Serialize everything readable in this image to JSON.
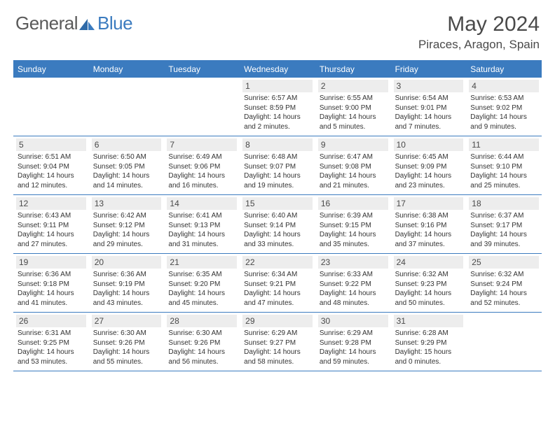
{
  "logo": {
    "part1": "General",
    "part2": "Blue"
  },
  "title": "May 2024",
  "location": "Piraces, Aragon, Spain",
  "colors": {
    "brand_blue": "#3b7bbf",
    "logo_gray": "#5a5a5a",
    "text": "#4a4a4a",
    "daynum_bg": "#ededed",
    "info_text": "#333333"
  },
  "weekdays": [
    "Sunday",
    "Monday",
    "Tuesday",
    "Wednesday",
    "Thursday",
    "Friday",
    "Saturday"
  ],
  "first_weekday_index": 3,
  "days": [
    {
      "n": 1,
      "sunrise": "6:57 AM",
      "sunset": "8:59 PM",
      "dl": "14 hours and 2 minutes."
    },
    {
      "n": 2,
      "sunrise": "6:55 AM",
      "sunset": "9:00 PM",
      "dl": "14 hours and 5 minutes."
    },
    {
      "n": 3,
      "sunrise": "6:54 AM",
      "sunset": "9:01 PM",
      "dl": "14 hours and 7 minutes."
    },
    {
      "n": 4,
      "sunrise": "6:53 AM",
      "sunset": "9:02 PM",
      "dl": "14 hours and 9 minutes."
    },
    {
      "n": 5,
      "sunrise": "6:51 AM",
      "sunset": "9:04 PM",
      "dl": "14 hours and 12 minutes."
    },
    {
      "n": 6,
      "sunrise": "6:50 AM",
      "sunset": "9:05 PM",
      "dl": "14 hours and 14 minutes."
    },
    {
      "n": 7,
      "sunrise": "6:49 AM",
      "sunset": "9:06 PM",
      "dl": "14 hours and 16 minutes."
    },
    {
      "n": 8,
      "sunrise": "6:48 AM",
      "sunset": "9:07 PM",
      "dl": "14 hours and 19 minutes."
    },
    {
      "n": 9,
      "sunrise": "6:47 AM",
      "sunset": "9:08 PM",
      "dl": "14 hours and 21 minutes."
    },
    {
      "n": 10,
      "sunrise": "6:45 AM",
      "sunset": "9:09 PM",
      "dl": "14 hours and 23 minutes."
    },
    {
      "n": 11,
      "sunrise": "6:44 AM",
      "sunset": "9:10 PM",
      "dl": "14 hours and 25 minutes."
    },
    {
      "n": 12,
      "sunrise": "6:43 AM",
      "sunset": "9:11 PM",
      "dl": "14 hours and 27 minutes."
    },
    {
      "n": 13,
      "sunrise": "6:42 AM",
      "sunset": "9:12 PM",
      "dl": "14 hours and 29 minutes."
    },
    {
      "n": 14,
      "sunrise": "6:41 AM",
      "sunset": "9:13 PM",
      "dl": "14 hours and 31 minutes."
    },
    {
      "n": 15,
      "sunrise": "6:40 AM",
      "sunset": "9:14 PM",
      "dl": "14 hours and 33 minutes."
    },
    {
      "n": 16,
      "sunrise": "6:39 AM",
      "sunset": "9:15 PM",
      "dl": "14 hours and 35 minutes."
    },
    {
      "n": 17,
      "sunrise": "6:38 AM",
      "sunset": "9:16 PM",
      "dl": "14 hours and 37 minutes."
    },
    {
      "n": 18,
      "sunrise": "6:37 AM",
      "sunset": "9:17 PM",
      "dl": "14 hours and 39 minutes."
    },
    {
      "n": 19,
      "sunrise": "6:36 AM",
      "sunset": "9:18 PM",
      "dl": "14 hours and 41 minutes."
    },
    {
      "n": 20,
      "sunrise": "6:36 AM",
      "sunset": "9:19 PM",
      "dl": "14 hours and 43 minutes."
    },
    {
      "n": 21,
      "sunrise": "6:35 AM",
      "sunset": "9:20 PM",
      "dl": "14 hours and 45 minutes."
    },
    {
      "n": 22,
      "sunrise": "6:34 AM",
      "sunset": "9:21 PM",
      "dl": "14 hours and 47 minutes."
    },
    {
      "n": 23,
      "sunrise": "6:33 AM",
      "sunset": "9:22 PM",
      "dl": "14 hours and 48 minutes."
    },
    {
      "n": 24,
      "sunrise": "6:32 AM",
      "sunset": "9:23 PM",
      "dl": "14 hours and 50 minutes."
    },
    {
      "n": 25,
      "sunrise": "6:32 AM",
      "sunset": "9:24 PM",
      "dl": "14 hours and 52 minutes."
    },
    {
      "n": 26,
      "sunrise": "6:31 AM",
      "sunset": "9:25 PM",
      "dl": "14 hours and 53 minutes."
    },
    {
      "n": 27,
      "sunrise": "6:30 AM",
      "sunset": "9:26 PM",
      "dl": "14 hours and 55 minutes."
    },
    {
      "n": 28,
      "sunrise": "6:30 AM",
      "sunset": "9:26 PM",
      "dl": "14 hours and 56 minutes."
    },
    {
      "n": 29,
      "sunrise": "6:29 AM",
      "sunset": "9:27 PM",
      "dl": "14 hours and 58 minutes."
    },
    {
      "n": 30,
      "sunrise": "6:29 AM",
      "sunset": "9:28 PM",
      "dl": "14 hours and 59 minutes."
    },
    {
      "n": 31,
      "sunrise": "6:28 AM",
      "sunset": "9:29 PM",
      "dl": "15 hours and 0 minutes."
    }
  ]
}
